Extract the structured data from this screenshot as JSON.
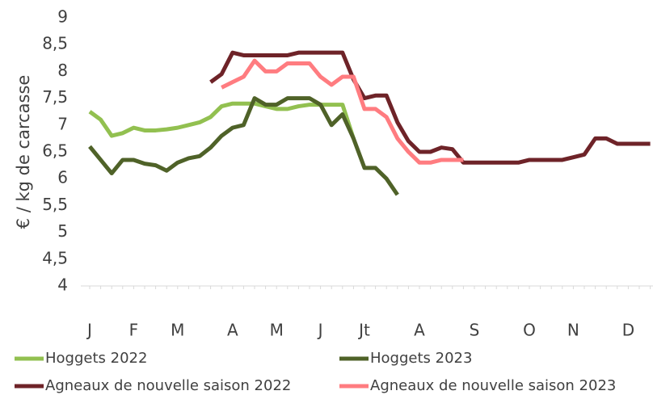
{
  "chart_data": {
    "type": "line",
    "y_label": "€ / kg de carcasse",
    "categories": [
      "J",
      null,
      null,
      null,
      "F",
      null,
      null,
      null,
      "M",
      null,
      null,
      null,
      null,
      "A",
      null,
      null,
      null,
      "M",
      null,
      null,
      null,
      "J",
      null,
      null,
      null,
      "Jt",
      null,
      null,
      null,
      null,
      "A",
      null,
      null,
      null,
      null,
      "S",
      null,
      null,
      null,
      null,
      "O",
      null,
      null,
      null,
      "N",
      null,
      null,
      null,
      null,
      "D",
      null,
      null
    ],
    "series": [
      {
        "name": "Hoggets 2022",
        "color": "#92c050",
        "values": [
          7.25,
          7.1,
          6.8,
          6.85,
          6.95,
          6.9,
          6.9,
          6.92,
          6.95,
          7.0,
          7.05,
          7.15,
          7.35,
          7.4,
          7.4,
          7.4,
          7.35,
          7.3,
          7.3,
          7.35,
          7.38,
          7.38,
          7.38,
          7.38,
          6.75,
          null,
          null,
          null,
          null,
          null,
          null,
          null,
          null,
          null,
          null,
          null,
          null,
          null,
          null,
          null,
          null,
          null,
          null,
          null,
          null,
          null,
          null,
          null,
          null,
          null,
          null,
          null
        ]
      },
      {
        "name": "Hoggets 2023",
        "color": "#4f6228",
        "values": [
          6.6,
          6.35,
          6.1,
          6.35,
          6.35,
          6.28,
          6.25,
          6.15,
          6.3,
          6.38,
          6.42,
          6.58,
          6.8,
          6.95,
          7.0,
          7.5,
          7.38,
          7.38,
          7.5,
          7.5,
          7.5,
          7.38,
          7.0,
          7.2,
          6.75,
          6.2,
          6.2,
          6.0,
          5.7,
          null,
          null,
          null,
          null,
          null,
          null,
          null,
          null,
          null,
          null,
          null,
          null,
          null,
          null,
          null,
          null,
          null,
          null,
          null,
          null,
          null,
          null,
          null
        ]
      },
      {
        "name": "Agneaux de nouvelle saison 2022",
        "color": "#6e2328",
        "values": [
          null,
          null,
          null,
          null,
          null,
          null,
          null,
          null,
          null,
          null,
          null,
          7.8,
          7.95,
          8.35,
          8.3,
          8.3,
          8.3,
          8.3,
          8.3,
          8.35,
          8.35,
          8.35,
          8.35,
          8.35,
          7.85,
          7.5,
          7.55,
          7.55,
          7.05,
          6.7,
          6.5,
          6.5,
          6.58,
          6.55,
          6.3,
          6.3,
          6.3,
          6.3,
          6.3,
          6.3,
          6.35,
          6.35,
          6.35,
          6.35,
          6.4,
          6.45,
          6.75,
          6.75,
          6.65,
          6.65,
          6.65,
          6.65
        ]
      },
      {
        "name": "Agneaux de nouvelle saison 2023",
        "color": "#ff7c80",
        "values": [
          null,
          null,
          null,
          null,
          null,
          null,
          null,
          null,
          null,
          null,
          null,
          null,
          7.7,
          7.8,
          7.9,
          8.2,
          8.0,
          8.0,
          8.15,
          8.15,
          8.15,
          7.9,
          7.75,
          7.9,
          7.9,
          7.3,
          7.3,
          7.15,
          6.75,
          6.5,
          6.3,
          6.3,
          6.35,
          6.35,
          6.35,
          null,
          null,
          null,
          null,
          null,
          null,
          null,
          null,
          null,
          null,
          null,
          null,
          null,
          null,
          null,
          null,
          null
        ]
      }
    ],
    "ylim": [
      4,
      9
    ],
    "yticks": [
      4,
      {
        "value": 4.5,
        "label": "4,5"
      },
      5,
      {
        "value": 5.5,
        "label": "5,5"
      },
      6,
      {
        "value": 6.5,
        "label": "6,5"
      },
      7,
      {
        "value": 7.5,
        "label": "7,5"
      },
      8,
      {
        "value": 8.5,
        "label": "8,5"
      },
      9
    ],
    "grid": false,
    "legend": "bottom"
  }
}
